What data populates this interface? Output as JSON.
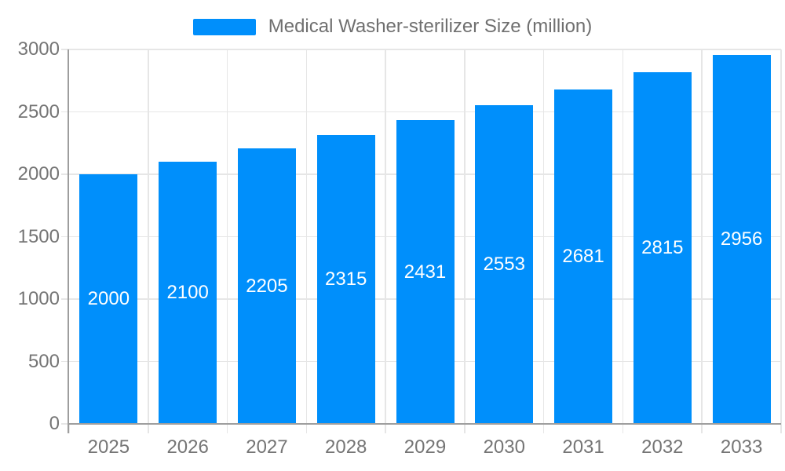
{
  "legend": {
    "label": "Medical Washer-sterilizer Size (million)"
  },
  "chart_data": {
    "type": "bar",
    "title": "Medical Washer-sterilizer Size (million)",
    "categories": [
      "2025",
      "2026",
      "2027",
      "2028",
      "2029",
      "2030",
      "2031",
      "2032",
      "2033"
    ],
    "values": [
      2000,
      2100,
      2205,
      2315,
      2431,
      2553,
      2681,
      2815,
      2956
    ],
    "xlabel": "",
    "ylabel": "",
    "ylim": [
      0,
      3000
    ],
    "yticks": [
      0,
      500,
      1000,
      1500,
      2000,
      2500,
      3000
    ],
    "grid": true,
    "bar_labels_inside": true,
    "legend_position": "top-center",
    "colors": {
      "bar": "#008FFB",
      "grid": "#e6e6e6",
      "axis": "#9e9e9e",
      "tick_label": "#757575",
      "bar_label": "#ffffff",
      "legend_text": "#6f6f6f",
      "background": "#ffffff"
    }
  }
}
